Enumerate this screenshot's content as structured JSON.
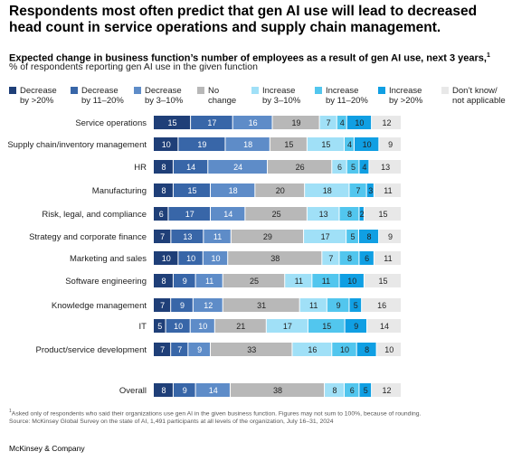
{
  "header": {
    "title": "Respondents most often predict that gen AI use will lead to decreased head count in service operations and supply chain management.",
    "subtitle": "Expected change in business function’s number of employees as a result of gen AI use, next 3 years,",
    "subtitle_note": "1",
    "subnote": "% of respondents reporting gen AI use in the given function"
  },
  "chart_data": {
    "type": "bar",
    "stacked": true,
    "orientation": "horizontal",
    "title": "Expected change in business function’s number of employees as a result of gen AI use, next 3 years",
    "unit": "% of respondents reporting gen AI use in the given function",
    "categories": [
      "Service operations",
      "Supply chain/inventory management",
      "HR",
      "Manufacturing",
      "Risk, legal, and compliance",
      "Strategy and corporate finance",
      "Marketing and sales",
      "Software engineering",
      "Knowledge management",
      "IT",
      "Product/service development",
      "Overall"
    ],
    "series": [
      {
        "name": "Decrease by >20%",
        "color": "#1f3f78",
        "values": [
          15,
          10,
          8,
          8,
          6,
          7,
          10,
          8,
          7,
          5,
          7,
          8
        ]
      },
      {
        "name": "Decrease by 11–20%",
        "color": "#3866a8",
        "values": [
          17,
          19,
          14,
          15,
          17,
          13,
          10,
          9,
          9,
          10,
          7,
          9
        ]
      },
      {
        "name": "Decrease by 3–10%",
        "color": "#5e8cc8",
        "values": [
          16,
          18,
          24,
          18,
          14,
          11,
          10,
          11,
          12,
          10,
          9,
          14
        ]
      },
      {
        "name": "No change",
        "color": "#b8b8b8",
        "values": [
          19,
          15,
          26,
          20,
          25,
          29,
          38,
          25,
          31,
          21,
          33,
          38
        ]
      },
      {
        "name": "Increase by 3–10%",
        "color": "#a0e0f7",
        "values": [
          7,
          15,
          6,
          18,
          13,
          17,
          7,
          11,
          11,
          17,
          16,
          8
        ]
      },
      {
        "name": "Increase by 11–20%",
        "color": "#52c6ee",
        "values": [
          4,
          4,
          5,
          7,
          8,
          5,
          8,
          11,
          9,
          15,
          10,
          6
        ]
      },
      {
        "name": "Increase by >20%",
        "color": "#109fe3",
        "values": [
          10,
          10,
          4,
          3,
          2,
          8,
          6,
          10,
          5,
          9,
          8,
          5
        ]
      },
      {
        "name": "Don’t know/ not applicable",
        "color": "#e8e8e8",
        "values": [
          12,
          9,
          13,
          11,
          15,
          9,
          11,
          15,
          16,
          14,
          10,
          12
        ]
      }
    ],
    "legend_position": "top",
    "grid": false
  },
  "legend": {
    "items": [
      {
        "label": "Decrease\nby >20%",
        "color": "#1f3f78"
      },
      {
        "label": "Decrease\nby 11–20%",
        "color": "#3866a8"
      },
      {
        "label": "Decrease\nby 3–10%",
        "color": "#5e8cc8"
      },
      {
        "label": "No\nchange",
        "color": "#b8b8b8"
      },
      {
        "label": "Increase\nby 3–10%",
        "color": "#a0e0f7"
      },
      {
        "label": "Increase\nby 11–20%",
        "color": "#52c6ee"
      },
      {
        "label": "Increase\nby >20%",
        "color": "#109fe3"
      },
      {
        "label": "Don’t know/\nnot applicable",
        "color": "#e8e8e8"
      }
    ]
  },
  "footnote": {
    "marker": "1",
    "line1": "Asked only of respondents who said their organizations use gen AI in the given business function. Figures may not sum to 100%, because of rounding.",
    "line2": "Source: McKinsey Global Survey on the state of AI, 1,491 participants at all levels of the organization, July 16–31, 2024"
  },
  "brand": "McKinsey & Company"
}
